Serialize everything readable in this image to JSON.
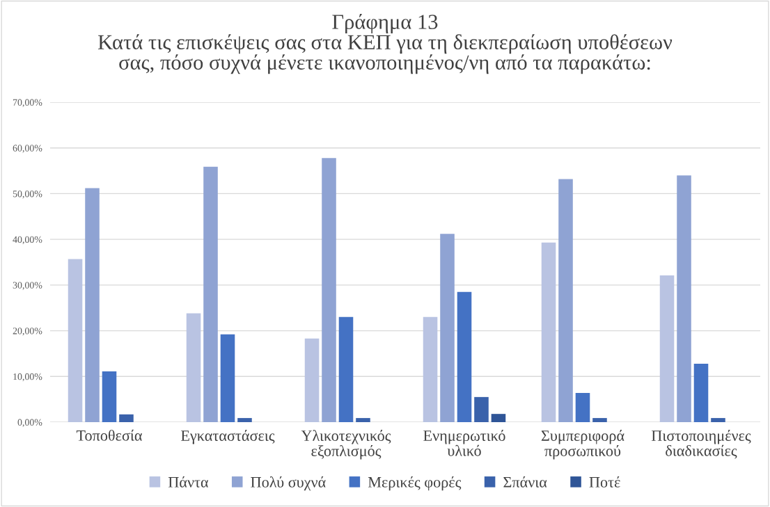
{
  "chart_data": {
    "type": "bar",
    "title": "Γράφημα 13\nΚατά τις επισκέψεις σας στα ΚΕΠ για τη διεκπεραίωση υποθέσεων\nσας, πόσο συχνά μένετε ικανοποιημένος/νη από τα παρακάτω:",
    "categories": [
      "Τοποθεσία",
      "Εγκαταστάσεις",
      "Υλικοτεχνικός\nεξοπλισμός",
      "Ενημερωτικό\nυλικό",
      "Συμπεριφορά\nπροσωπικού",
      "Πιστοποιημένες\nδιαδικασίες"
    ],
    "series": [
      {
        "name": "Πάντα",
        "color": "#b9c3e2",
        "values": [
          35.7,
          23.8,
          18.3,
          23.0,
          39.3,
          32.1
        ]
      },
      {
        "name": "Πολύ συχνά",
        "color": "#8fa3d3",
        "values": [
          51.2,
          55.9,
          57.8,
          41.2,
          53.2,
          54.0
        ]
      },
      {
        "name": "Μερικές φορές",
        "color": "#4472c4",
        "values": [
          11.1,
          19.2,
          23.0,
          28.5,
          6.4,
          12.8
        ]
      },
      {
        "name": "Σπάνια",
        "color": "#3a62ab",
        "values": [
          1.7,
          0.9,
          0.9,
          5.5,
          0.9,
          0.9
        ]
      },
      {
        "name": "Ποτέ",
        "color": "#2f5597",
        "values": [
          0,
          0,
          0,
          1.8,
          0,
          0
        ]
      }
    ],
    "ylim": [
      0,
      70
    ],
    "yticks": [
      {
        "value": 0,
        "label": "0,00%"
      },
      {
        "value": 10,
        "label": "10,00%"
      },
      {
        "value": 20,
        "label": "20,00%"
      },
      {
        "value": 30,
        "label": "30,00%"
      },
      {
        "value": 40,
        "label": "40,00%"
      },
      {
        "value": 50,
        "label": "50,00%"
      },
      {
        "value": 60,
        "label": "60,00%"
      },
      {
        "value": 70,
        "label": "70,00%"
      }
    ],
    "grid": "y",
    "legend": "bottom"
  }
}
